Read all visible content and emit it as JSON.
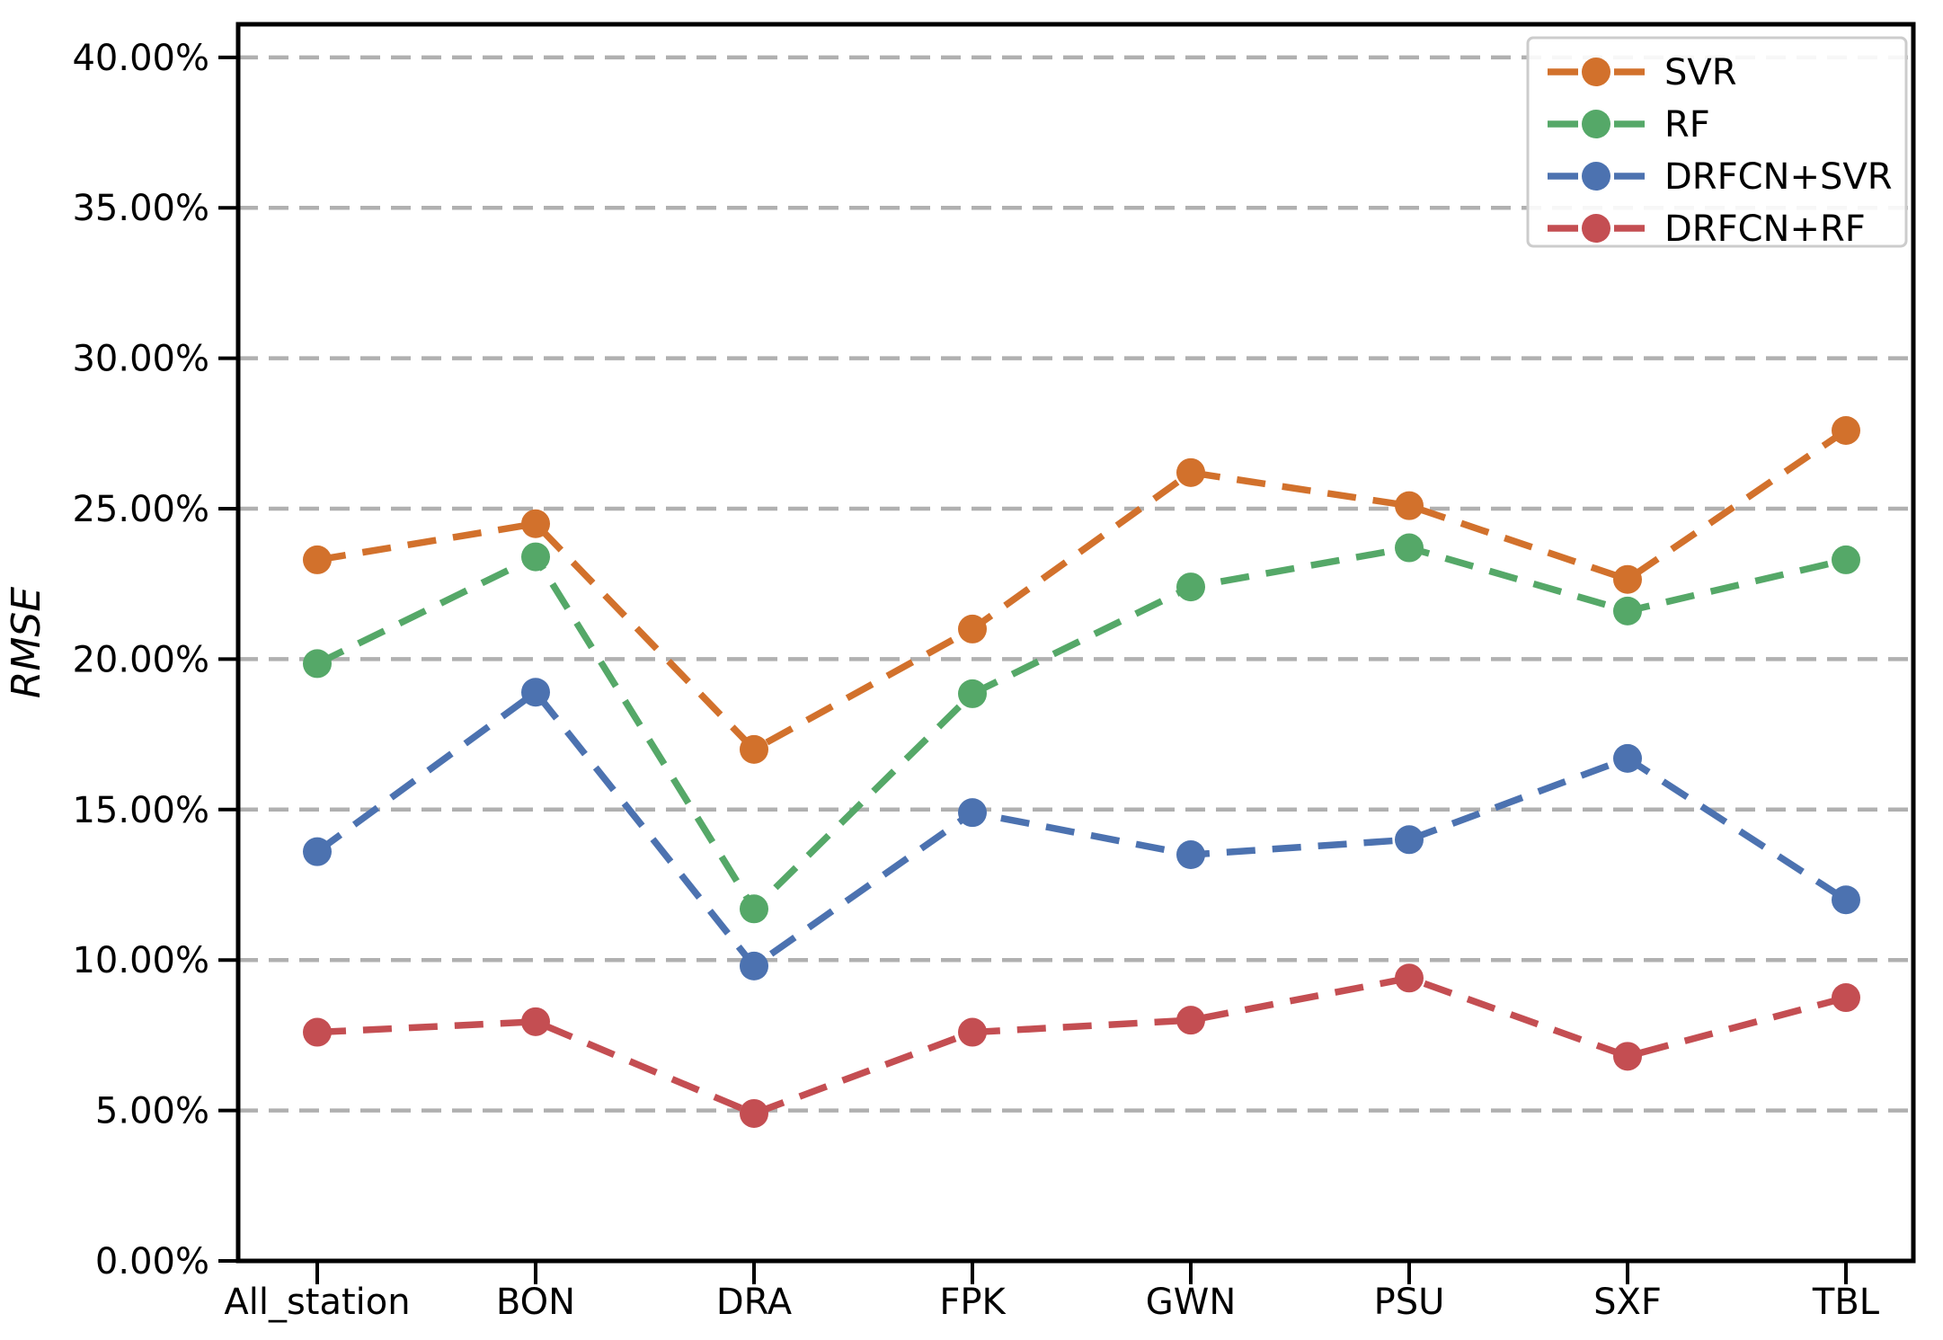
{
  "figure": {
    "background": "#ffffff",
    "spine_color": "#000000",
    "tick_label_color": "#000000"
  },
  "chart_data": {
    "type": "line",
    "title": "",
    "xlabel": "",
    "ylabel": "RMSE",
    "categories": [
      "All_station",
      "BON",
      "DRA",
      "FPK",
      "GWN",
      "PSU",
      "SXF",
      "TBL"
    ],
    "series": [
      {
        "name": "SVR",
        "color": "#d2712c",
        "linestyle": "dashed",
        "marker": "circle",
        "values": [
          23.3,
          24.5,
          17.0,
          21.0,
          26.2,
          25.1,
          22.65,
          27.6
        ]
      },
      {
        "name": "RF",
        "color": "#55a868",
        "linestyle": "dashed",
        "marker": "circle",
        "values": [
          19.85,
          23.4,
          11.7,
          18.85,
          22.4,
          23.7,
          21.6,
          23.3
        ]
      },
      {
        "name": "DRFCN+SVR",
        "color": "#4c72b0",
        "linestyle": "dashed",
        "marker": "circle",
        "values": [
          13.6,
          18.9,
          9.8,
          14.9,
          13.5,
          14.0,
          16.7,
          12.0
        ]
      },
      {
        "name": "DRFCN+RF",
        "color": "#c44e52",
        "linestyle": "dashed",
        "marker": "circle",
        "values": [
          7.6,
          7.95,
          4.9,
          7.6,
          8.0,
          9.4,
          6.8,
          8.75
        ]
      }
    ],
    "ylim": [
      0,
      41.1
    ],
    "ytick_values": [
      0,
      5,
      10,
      15,
      20,
      25,
      30,
      35,
      40
    ],
    "ytick_labels": [
      "0.00%",
      "5.00%",
      "10.00%",
      "15.00%",
      "20.00%",
      "25.00%",
      "30.00%",
      "35.00%",
      "40.00%"
    ],
    "grid": {
      "axis": "y",
      "style": "dashed",
      "color": "#b0b0b0"
    },
    "legend": {
      "position": "upper right",
      "entries": [
        "SVR",
        "RF",
        "DRFCN+SVR",
        "DRFCN+RF"
      ],
      "border_color": "#cccccc",
      "background": "#ffffff"
    }
  }
}
